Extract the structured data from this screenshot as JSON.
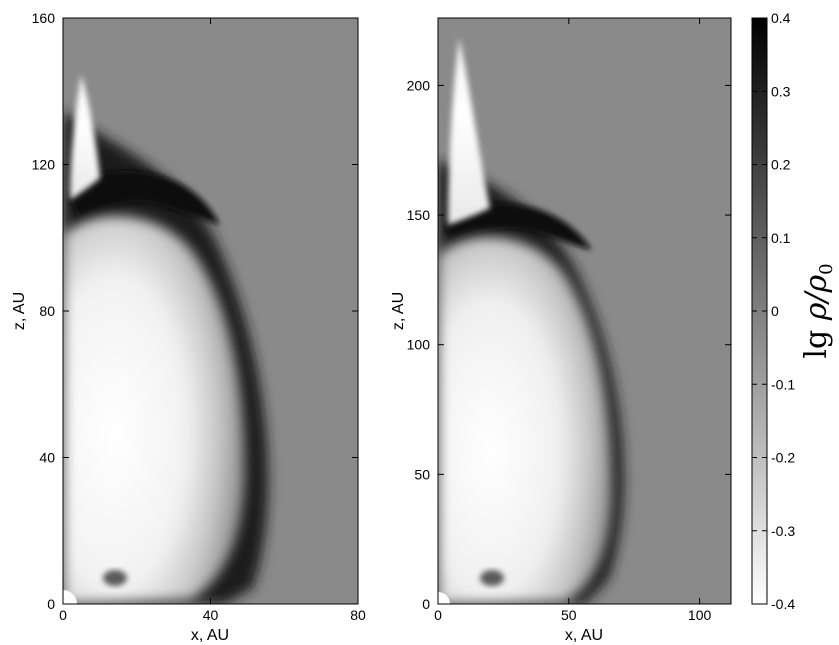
{
  "chart_data": [
    {
      "type": "heatmap",
      "xlabel": "x, AU",
      "ylabel": "z, AU",
      "xlim": [
        0,
        80
      ],
      "ylim": [
        0,
        160
      ],
      "x_ticks": [
        0,
        40,
        80
      ],
      "y_ticks": [
        0,
        40,
        80,
        120,
        160
      ],
      "background_level": 0
    },
    {
      "type": "heatmap",
      "xlabel": "x, AU",
      "ylabel": "z, AU",
      "xlim": [
        0,
        112
      ],
      "ylim": [
        0,
        226
      ],
      "x_ticks": [
        0,
        50,
        100
      ],
      "y_ticks": [
        0,
        50,
        100,
        150,
        200
      ],
      "background_level": 0
    }
  ],
  "colorbar": {
    "label": "lg ρ/ρ₀",
    "label_main": "lg ",
    "label_math": "ρ/ρ",
    "label_sub": "0",
    "min": -0.4,
    "max": 0.4,
    "ticks": [
      "0.4",
      "0.3",
      "0.2",
      "0.1",
      "0",
      "-0.1",
      "-0.2",
      "-0.3",
      "-0.4"
    ],
    "colors": {
      "low": "#ffffff",
      "high": "#000000"
    }
  }
}
